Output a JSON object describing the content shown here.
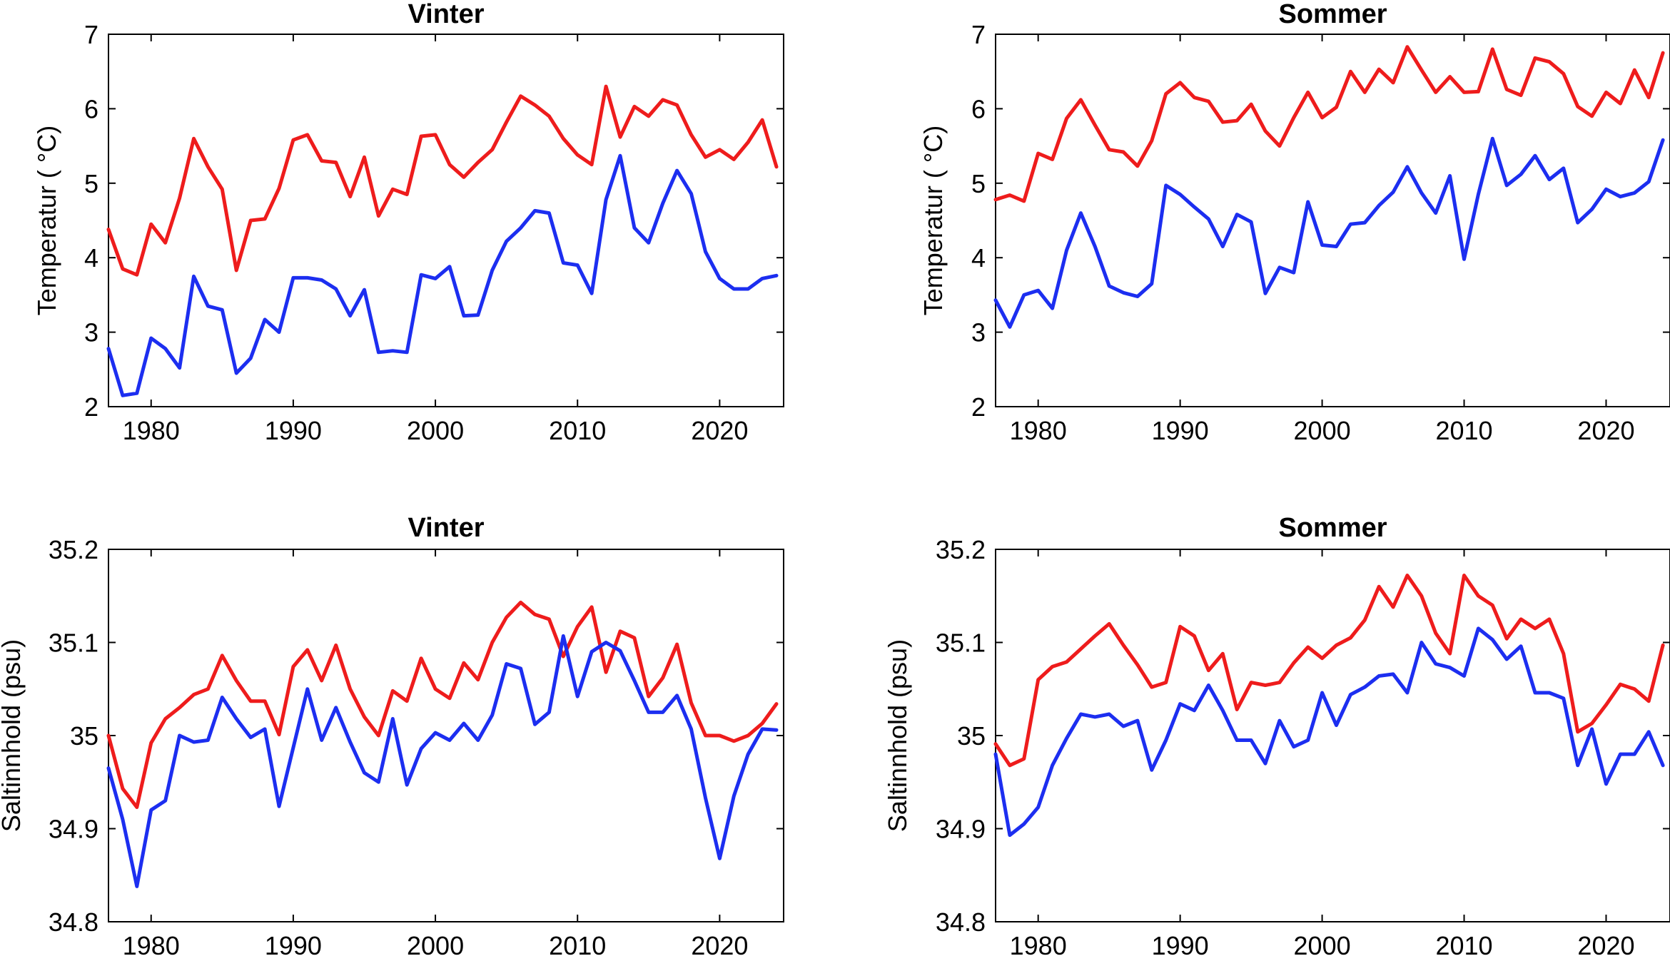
{
  "colors": {
    "series_a": "#ee1c1c",
    "series_b": "#1c2ef0",
    "axis": "#000000"
  },
  "chart_data": [
    {
      "type": "line",
      "title": "Vinter",
      "xlabel": "",
      "ylabel": "Temperatur   ( °C)",
      "xlim": [
        1977,
        2024.5
      ],
      "ylim": [
        2,
        7
      ],
      "xticks": [
        1980,
        1990,
        2000,
        2010,
        2020
      ],
      "yticks": [
        2,
        3,
        4,
        5,
        6,
        7
      ],
      "ytick_labels": [
        "2",
        "3",
        "4",
        "5",
        "6",
        "7"
      ],
      "x_start": 1977,
      "series": [
        {
          "name": "red",
          "color": "#ee1c1c",
          "values": [
            4.38,
            3.85,
            3.77,
            4.45,
            4.2,
            4.8,
            5.6,
            5.22,
            4.92,
            3.83,
            4.5,
            4.52,
            4.93,
            5.58,
            5.65,
            5.3,
            5.28,
            4.82,
            5.35,
            4.56,
            4.92,
            4.85,
            5.63,
            5.65,
            5.25,
            5.08,
            5.28,
            5.45,
            5.82,
            6.17,
            6.05,
            5.9,
            5.6,
            5.38,
            5.25,
            6.3,
            5.62,
            6.03,
            5.9,
            6.12,
            6.05,
            5.65,
            5.35,
            5.45,
            5.32,
            5.55,
            5.85,
            5.22
          ]
        },
        {
          "name": "blue",
          "color": "#1c2ef0",
          "values": [
            2.78,
            2.15,
            2.18,
            2.92,
            2.78,
            2.52,
            3.75,
            3.35,
            3.3,
            2.45,
            2.65,
            3.17,
            3.0,
            3.73,
            3.73,
            3.7,
            3.58,
            3.22,
            3.57,
            2.73,
            2.75,
            2.73,
            3.77,
            3.72,
            3.88,
            3.22,
            3.23,
            3.83,
            4.22,
            4.4,
            4.63,
            4.6,
            3.93,
            3.9,
            3.52,
            4.78,
            5.37,
            4.4,
            4.2,
            4.73,
            5.17,
            4.86,
            4.08,
            3.72,
            3.58,
            3.58,
            3.72,
            3.76
          ]
        }
      ]
    },
    {
      "type": "line",
      "title": "Sommer",
      "xlabel": "",
      "ylabel": "Temperatur   ( °C)",
      "xlim": [
        1977,
        2024.5
      ],
      "ylim": [
        2,
        7
      ],
      "xticks": [
        1980,
        1990,
        2000,
        2010,
        2020
      ],
      "yticks": [
        2,
        3,
        4,
        5,
        6,
        7
      ],
      "ytick_labels": [
        "2",
        "3",
        "4",
        "5",
        "6",
        "7"
      ],
      "x_start": 1977,
      "series": [
        {
          "name": "red",
          "color": "#ee1c1c",
          "values": [
            4.78,
            4.84,
            4.76,
            5.4,
            5.32,
            5.87,
            6.12,
            5.78,
            5.45,
            5.42,
            5.23,
            5.57,
            6.2,
            6.35,
            6.15,
            6.1,
            5.82,
            5.84,
            6.06,
            5.7,
            5.5,
            5.88,
            6.22,
            5.88,
            6.02,
            6.5,
            6.22,
            6.53,
            6.35,
            6.83,
            6.52,
            6.22,
            6.43,
            6.22,
            6.23,
            6.8,
            6.26,
            6.18,
            6.68,
            6.63,
            6.47,
            6.03,
            5.9,
            6.22,
            6.07,
            6.52,
            6.15,
            6.75
          ]
        },
        {
          "name": "blue",
          "color": "#1c2ef0",
          "values": [
            3.43,
            3.07,
            3.5,
            3.56,
            3.32,
            4.1,
            4.6,
            4.15,
            3.62,
            3.53,
            3.48,
            3.65,
            4.97,
            4.85,
            4.68,
            4.52,
            4.15,
            4.58,
            4.48,
            3.52,
            3.87,
            3.8,
            4.75,
            4.17,
            4.15,
            4.45,
            4.47,
            4.7,
            4.88,
            5.22,
            4.87,
            4.6,
            5.1,
            3.98,
            4.85,
            5.6,
            4.97,
            5.12,
            5.37,
            5.05,
            5.2,
            4.47,
            4.65,
            4.92,
            4.82,
            4.87,
            5.02,
            5.58
          ]
        }
      ]
    },
    {
      "type": "line",
      "title": "Vinter",
      "xlabel": "",
      "ylabel": "Saltinnhold (psu)",
      "xlim": [
        1977,
        2024.5
      ],
      "ylim": [
        34.8,
        35.2
      ],
      "xticks": [
        1980,
        1990,
        2000,
        2010,
        2020
      ],
      "yticks": [
        34.8,
        34.9,
        35.0,
        35.1,
        35.2
      ],
      "ytick_labels": [
        "34.8",
        "34.9",
        "35",
        "35.1",
        "35.2"
      ],
      "x_start": 1977,
      "series": [
        {
          "name": "red",
          "color": "#ee1c1c",
          "values": [
            35.0,
            34.943,
            34.923,
            34.992,
            35.018,
            35.03,
            35.044,
            35.05,
            35.086,
            35.059,
            35.037,
            35.037,
            35.001,
            35.074,
            35.092,
            35.059,
            35.097,
            35.05,
            35.02,
            35.0,
            35.048,
            35.037,
            35.083,
            35.05,
            35.04,
            35.078,
            35.06,
            35.1,
            35.127,
            35.143,
            35.13,
            35.125,
            35.085,
            35.117,
            35.138,
            35.068,
            35.112,
            35.105,
            35.042,
            35.062,
            35.098,
            35.035,
            35.0,
            35.0,
            34.994,
            35.0,
            35.013,
            35.034
          ]
        },
        {
          "name": "blue",
          "color": "#1c2ef0",
          "values": [
            34.965,
            34.91,
            34.838,
            34.92,
            34.93,
            35.0,
            34.993,
            34.995,
            35.041,
            35.018,
            34.998,
            35.007,
            34.924,
            34.987,
            35.05,
            34.995,
            35.03,
            34.993,
            34.96,
            34.95,
            35.018,
            34.947,
            34.986,
            35.003,
            34.995,
            35.013,
            34.995,
            35.022,
            35.077,
            35.072,
            35.012,
            35.025,
            35.107,
            35.042,
            35.09,
            35.1,
            35.091,
            35.059,
            35.025,
            35.025,
            35.043,
            35.007,
            34.933,
            34.868,
            34.935,
            34.98,
            35.007,
            35.006
          ]
        }
      ]
    },
    {
      "type": "line",
      "title": "Sommer",
      "xlabel": "",
      "ylabel": "Saltinnhold (psu)",
      "xlim": [
        1977,
        2024.5
      ],
      "ylim": [
        34.8,
        35.2
      ],
      "xticks": [
        1980,
        1990,
        2000,
        2010,
        2020
      ],
      "yticks": [
        34.8,
        34.9,
        35.0,
        35.1,
        35.2
      ],
      "ytick_labels": [
        "34.8",
        "34.9",
        "35",
        "35.1",
        "35.2"
      ],
      "x_start": 1977,
      "series": [
        {
          "name": "red",
          "color": "#ee1c1c",
          "values": [
            34.991,
            34.968,
            34.975,
            35.06,
            35.074,
            35.079,
            35.093,
            35.107,
            35.12,
            35.097,
            35.076,
            35.052,
            35.057,
            35.117,
            35.107,
            35.07,
            35.088,
            35.028,
            35.057,
            35.054,
            35.057,
            35.078,
            35.095,
            35.083,
            35.097,
            35.105,
            35.124,
            35.16,
            35.138,
            35.172,
            35.15,
            35.11,
            35.088,
            35.172,
            35.15,
            35.14,
            35.104,
            35.125,
            35.115,
            35.125,
            35.088,
            35.004,
            35.013,
            35.033,
            35.055,
            35.05,
            35.037,
            35.097
          ]
        },
        {
          "name": "blue",
          "color": "#1c2ef0",
          "values": [
            34.98,
            34.893,
            34.905,
            34.923,
            34.968,
            34.997,
            35.023,
            35.02,
            35.023,
            35.01,
            35.016,
            34.963,
            34.995,
            35.034,
            35.027,
            35.054,
            35.027,
            34.995,
            34.995,
            34.97,
            35.016,
            34.988,
            34.995,
            35.046,
            35.011,
            35.044,
            35.052,
            35.064,
            35.066,
            35.046,
            35.1,
            35.077,
            35.073,
            35.064,
            35.115,
            35.103,
            35.082,
            35.096,
            35.046,
            35.046,
            35.04,
            34.968,
            35.007,
            34.948,
            34.98,
            34.98,
            35.004,
            34.968
          ]
        }
      ]
    }
  ]
}
